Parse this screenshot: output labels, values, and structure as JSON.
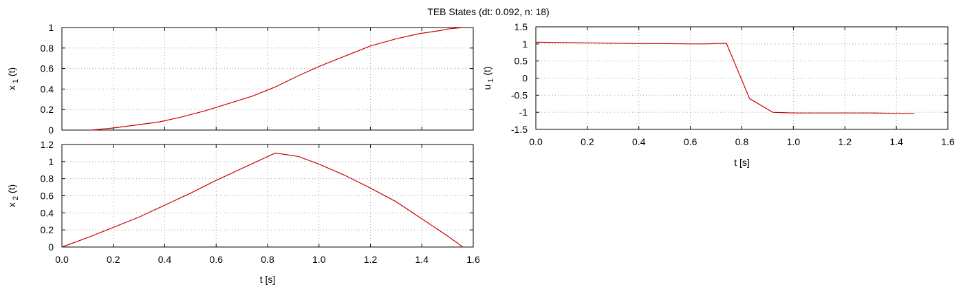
{
  "figure": {
    "title": "TEB States (dt: 0.092, n: 18)"
  },
  "chart_data": [
    {
      "id": "x1",
      "type": "line",
      "ylabel": {
        "main": "x",
        "sub": "1",
        "suffix": " (t)"
      },
      "xlabel": "",
      "xlim": [
        0,
        1.6
      ],
      "ylim": [
        0,
        1
      ],
      "xticks": [
        0,
        0.2,
        0.4,
        0.6,
        0.8,
        1.0,
        1.2,
        1.4,
        1.6
      ],
      "xtick_labels": [],
      "yticks": [
        0,
        0.2,
        0.4,
        0.6,
        0.8,
        1
      ],
      "ytick_labels": [
        "0",
        "0.2",
        "0.4",
        "0.6",
        "0.8",
        "1"
      ],
      "grid": true,
      "color": "#cc0000",
      "x": [
        0.116,
        0.2,
        0.29,
        0.38,
        0.47,
        0.56,
        0.65,
        0.74,
        0.83,
        0.92,
        1.01,
        1.1,
        1.2,
        1.3,
        1.39,
        1.47,
        1.5,
        1.56
      ],
      "y": [
        0.0,
        0.02,
        0.05,
        0.08,
        0.13,
        0.19,
        0.26,
        0.33,
        0.42,
        0.53,
        0.63,
        0.72,
        0.82,
        0.89,
        0.94,
        0.97,
        0.985,
        1.0
      ]
    },
    {
      "id": "u1",
      "type": "line",
      "ylabel": {
        "main": "u",
        "sub": "1",
        "suffix": " (t)"
      },
      "xlabel": "t [s]",
      "xlim": [
        0,
        1.6
      ],
      "ylim": [
        -1.5,
        1.5
      ],
      "xticks": [
        0,
        0.2,
        0.4,
        0.6,
        0.8,
        1.0,
        1.2,
        1.4,
        1.6
      ],
      "xtick_labels": [
        "0.0",
        "0.2",
        "0.4",
        "0.6",
        "0.8",
        "1.0",
        "1.2",
        "1.4",
        "1.6"
      ],
      "yticks": [
        -1.5,
        -1,
        -0.5,
        0,
        0.5,
        1,
        1.5
      ],
      "ytick_labels": [
        "-1.5",
        "-1",
        "-0.5",
        "0",
        "0.5",
        "1",
        "1.5"
      ],
      "grid": true,
      "color": "#cc0000",
      "x": [
        0.0,
        0.116,
        0.2,
        0.3,
        0.4,
        0.5,
        0.6,
        0.66,
        0.74,
        0.83,
        0.92,
        1.0,
        1.1,
        1.2,
        1.3,
        1.4,
        1.47
      ],
      "y": [
        1.05,
        1.04,
        1.03,
        1.02,
        1.01,
        1.01,
        1.0,
        1.0,
        1.02,
        -0.6,
        -1.0,
        -1.02,
        -1.02,
        -1.02,
        -1.02,
        -1.03,
        -1.04
      ]
    },
    {
      "id": "x2",
      "type": "line",
      "ylabel": {
        "main": "x",
        "sub": "2",
        "suffix": " (t)"
      },
      "xlabel": "t [s]",
      "xlim": [
        0,
        1.6
      ],
      "ylim": [
        0,
        1.2
      ],
      "xticks": [
        0,
        0.2,
        0.4,
        0.6,
        0.8,
        1.0,
        1.2,
        1.4,
        1.6
      ],
      "xtick_labels": [
        "0.0",
        "0.2",
        "0.4",
        "0.6",
        "0.8",
        "1.0",
        "1.2",
        "1.4",
        "1.6"
      ],
      "yticks": [
        0,
        0.2,
        0.4,
        0.6,
        0.8,
        1,
        1.2
      ],
      "ytick_labels": [
        "0",
        "0.2",
        "0.4",
        "0.6",
        "0.8",
        "1",
        "1.2"
      ],
      "grid": true,
      "color": "#cc0000",
      "x": [
        0.0,
        0.1,
        0.2,
        0.3,
        0.4,
        0.5,
        0.6,
        0.7,
        0.83,
        0.92,
        1.0,
        1.1,
        1.2,
        1.3,
        1.4,
        1.5,
        1.56
      ],
      "y": [
        0.0,
        0.11,
        0.23,
        0.35,
        0.49,
        0.63,
        0.78,
        0.92,
        1.1,
        1.06,
        0.97,
        0.84,
        0.69,
        0.53,
        0.33,
        0.13,
        0.0
      ]
    }
  ]
}
